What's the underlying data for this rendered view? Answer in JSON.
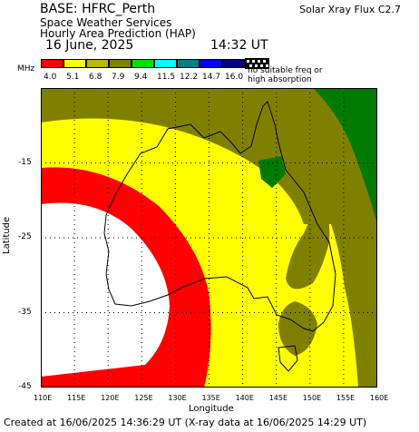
{
  "header": {
    "base": "BASE: HFRC_Perth",
    "line2": "Space Weather Services",
    "line3": "Hourly Area Prediction (HAP)",
    "flux": "Solar Xray Flux C2.7",
    "date": "16 June, 2025",
    "time": "14:32 UT"
  },
  "legend": {
    "unit": "MHz",
    "items": [
      {
        "label": "4.0",
        "color": "#ff0000"
      },
      {
        "label": "5.1",
        "color": "#ffff00"
      },
      {
        "label": "6.8",
        "color": "#b8b800"
      },
      {
        "label": "7.9",
        "color": "#808000"
      },
      {
        "label": "9.4",
        "color": "#00e000"
      },
      {
        "label": "11.5",
        "color": "#00ffff"
      },
      {
        "label": "12.2",
        "color": "#008080"
      },
      {
        "label": "14.7",
        "color": "#0000ff"
      },
      {
        "label": "16.0",
        "color": "#000080"
      }
    ],
    "no_suitable": [
      "no suitable freq or",
      "high absorption"
    ]
  },
  "map": {
    "latitudes": [
      "-15",
      "-25",
      "-35",
      "-45"
    ],
    "longitudes": [
      "110E",
      "115E",
      "120E",
      "125E",
      "130E",
      "135E",
      "140E",
      "145E",
      "150E",
      "155E",
      "160E"
    ],
    "xlabel": "Longitude",
    "ylabel": "Latitude",
    "lon_range": [
      110,
      160
    ],
    "lat_range": [
      -45,
      -5
    ]
  },
  "footer": "Created at 16/06/2025 14:36:29 UT (X-ray data at 16/06/2025 14:29 UT)"
}
